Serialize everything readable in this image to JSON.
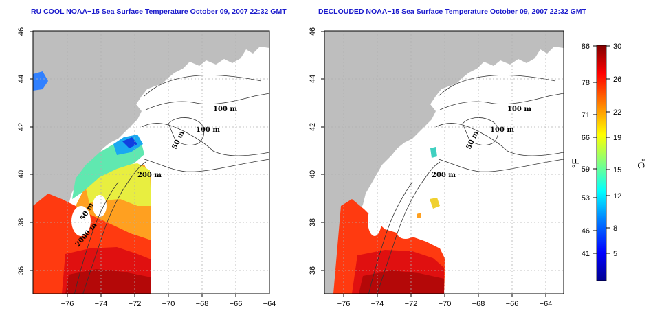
{
  "panels": [
    {
      "title": "RU COOL NOAA−15 Sea Surface Temperature October 09, 2007 22:32 GMT"
    },
    {
      "title": "DECLOUDED NOAA−15 Sea Surface Temperature October 09, 2007 22:32 GMT"
    }
  ],
  "map": {
    "lon_ticks": [
      "−76",
      "−74",
      "−72",
      "−70",
      "−68",
      "−66",
      "−64"
    ],
    "lat_ticks": [
      "36",
      "38",
      "40",
      "42",
      "44",
      "46"
    ],
    "contour_labels": {
      "c100a": "100 m",
      "c100b": "100 m",
      "c50a": "50 m",
      "c200": "200 m",
      "c50b": "50 m",
      "c2000": "2000 m"
    }
  },
  "colorbar": {
    "fahrenheit_ticks": [
      "86",
      "78",
      "71",
      "66",
      "59",
      "53",
      "46",
      "41"
    ],
    "celsius_ticks": [
      "30",
      "26",
      "22",
      "19",
      "15",
      "12",
      "8",
      "5"
    ],
    "fahrenheit_unit": "°F",
    "celsius_unit": "°C",
    "colors": [
      "#00008f",
      "#0000ff",
      "#0080ff",
      "#00ffff",
      "#80ff80",
      "#ffff00",
      "#ff8000",
      "#ff0000",
      "#800000"
    ]
  }
}
